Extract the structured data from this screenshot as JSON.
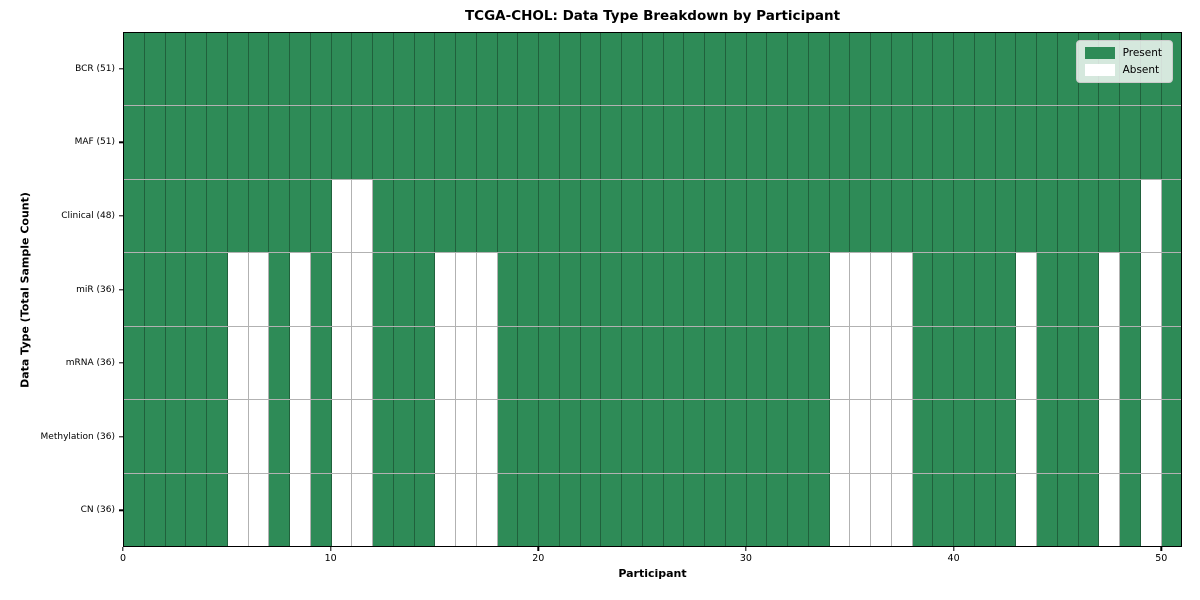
{
  "figure": {
    "title": "TCGA-CHOL: Data Type Breakdown by Participant",
    "xlabel": "Participant",
    "ylabel": "Data Type (Total Sample Count)"
  },
  "legend": {
    "present_label": "Present",
    "absent_label": "Absent",
    "position": "upper right"
  },
  "colors": {
    "present": "#2E8B57",
    "absent": "#FFFFFF",
    "grid_line": "rgba(0,0,0,0.3)",
    "spine": "#000000",
    "legend_background": "rgba(255,255,255,0.8)",
    "legend_border": "#CCCCCC",
    "background": "#FFFFFF"
  },
  "chart_data": {
    "type": "heatmap",
    "title": "TCGA-CHOL: Data Type Breakdown by Participant",
    "xlabel": "Participant",
    "ylabel": "Data Type (Total Sample Count)",
    "legend": [
      "Present",
      "Absent"
    ],
    "legend_position": "upper right",
    "grid": true,
    "n_participants": 51,
    "x_axis_range": [
      0,
      51
    ],
    "x_ticks": [
      0,
      10,
      20,
      30,
      40,
      50
    ],
    "value_encoding": {
      "present_color": "#2E8B57",
      "absent_color": "#FFFFFF"
    },
    "rows": [
      {
        "name": "BCR",
        "label": "BCR (51)",
        "present_count": 51,
        "absent_participants": []
      },
      {
        "name": "MAF",
        "label": "MAF (51)",
        "present_count": 51,
        "absent_participants": []
      },
      {
        "name": "Clinical",
        "label": "Clinical (48)",
        "present_count": 48,
        "absent_participants": [
          10,
          11,
          49
        ]
      },
      {
        "name": "miR",
        "label": "miR (36)",
        "present_count": 36,
        "absent_participants": [
          5,
          6,
          8,
          10,
          11,
          15,
          16,
          17,
          34,
          35,
          36,
          37,
          43,
          47,
          49
        ]
      },
      {
        "name": "mRNA",
        "label": "mRNA (36)",
        "present_count": 36,
        "absent_participants": [
          5,
          6,
          8,
          10,
          11,
          15,
          16,
          17,
          34,
          35,
          36,
          37,
          43,
          47,
          49
        ]
      },
      {
        "name": "Methylation",
        "label": "Methylation (36)",
        "present_count": 36,
        "absent_participants": [
          5,
          6,
          8,
          10,
          11,
          15,
          16,
          17,
          34,
          35,
          36,
          37,
          43,
          47,
          49
        ]
      },
      {
        "name": "CN",
        "label": "CN (36)",
        "present_count": 36,
        "absent_participants": [
          5,
          6,
          8,
          10,
          11,
          15,
          16,
          17,
          34,
          35,
          36,
          37,
          43,
          47,
          49
        ]
      }
    ]
  }
}
